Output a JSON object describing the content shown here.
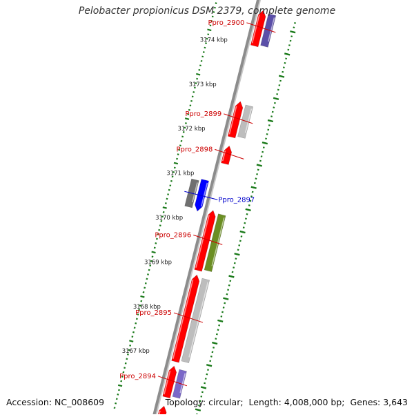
{
  "title": "Pelobacter propionicus DSM 2379, complete genome",
  "footer": {
    "accession": "Accession: NC_008609",
    "topology": "Topology: circular;",
    "length": "Length: 4,008,000 bp;",
    "genes": "Genes: 3,643"
  },
  "colors": {
    "tick": "#1a7a1a",
    "label_red": "#cc0000",
    "label_blue": "#0000cc",
    "backbone": "#8c8c8c"
  },
  "scale": [
    {
      "kbp": 3174,
      "label": "3174 kbp"
    },
    {
      "kbp": 3173,
      "label": "3173 kbp"
    },
    {
      "kbp": 3172,
      "label": "3172 kbp"
    },
    {
      "kbp": 3171,
      "label": "3171 kbp"
    },
    {
      "kbp": 3170,
      "label": "3170 kbp"
    },
    {
      "kbp": 3169,
      "label": "3169 kbp"
    },
    {
      "kbp": 3168,
      "label": "3168 kbp"
    },
    {
      "kbp": 3167,
      "label": "3167 kbp"
    }
  ],
  "genes": [
    {
      "id": "g2900",
      "label": "Ppro_2900",
      "label_color": "red",
      "strand": "plus",
      "start_kbp": 3173.9,
      "end_kbp": 3174.7,
      "cog_color": "#5b4fa8",
      "gene_color": "#ff0000"
    },
    {
      "id": "g2899",
      "label": "Ppro_2899",
      "label_color": "red",
      "strand": "plus",
      "start_kbp": 3171.85,
      "end_kbp": 3172.65,
      "cog_color": "#bdbdbd",
      "gene_color": "#ff0000"
    },
    {
      "id": "g2898",
      "label": "Ppro_2898",
      "label_color": "red",
      "strand": "plus",
      "start_kbp": 3171.25,
      "end_kbp": 3171.65,
      "cog_color": null,
      "gene_color": "#ff0000"
    },
    {
      "id": "g2897",
      "label": "Ppro_2897",
      "label_color": "blue",
      "strand": "minus",
      "start_kbp": 3170.1,
      "end_kbp": 3170.8,
      "cog_color": "#707070",
      "gene_color": "#0000ff"
    },
    {
      "id": "g2896",
      "label": "Ppro_2896",
      "label_color": "red",
      "strand": "plus",
      "start_kbp": 3168.85,
      "end_kbp": 3170.2,
      "cog_color": "#6b8e23",
      "gene_color": "#ff0000"
    },
    {
      "id": "g2895",
      "label": "Ppro_2895",
      "label_color": "red",
      "strand": "plus",
      "start_kbp": 3166.8,
      "end_kbp": 3168.75,
      "cog_color": "#bdbdbd",
      "gene_color": "#ff0000"
    },
    {
      "id": "g2894",
      "label": "Ppro_2894",
      "label_color": "red",
      "strand": "plus",
      "start_kbp": 3166.0,
      "end_kbp": 3166.7,
      "cog_color": "#7b68c8",
      "gene_color": "#ff0000"
    },
    {
      "id": "g2893",
      "label": "",
      "label_color": "red",
      "strand": "plus",
      "start_kbp": 3165.3,
      "end_kbp": 3165.8,
      "cog_color": null,
      "gene_color": "#ff0000"
    }
  ]
}
